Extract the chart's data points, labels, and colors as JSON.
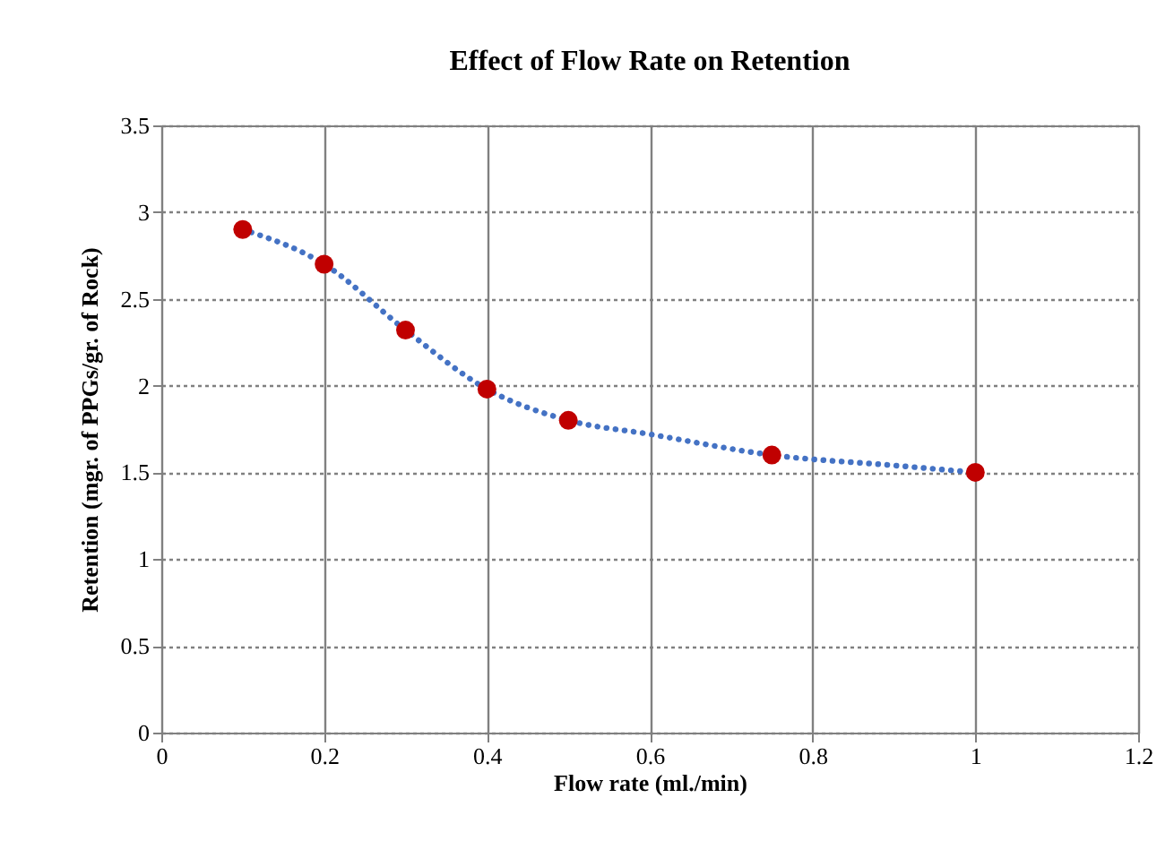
{
  "chart_data": {
    "type": "scatter",
    "title": "Effect of Flow Rate on Retention",
    "xlabel": "Flow rate (ml./min)",
    "ylabel": "Retention (mgr. of PPGs/gr. of Rock)",
    "x": [
      0.1,
      0.2,
      0.3,
      0.4,
      0.5,
      0.75,
      1.0
    ],
    "series": [
      {
        "type": "line",
        "color": "#4472c4",
        "line_style": "dotted",
        "marker": "none",
        "x": [
          0.1,
          0.2,
          0.3,
          0.4,
          0.5,
          0.6,
          0.75,
          0.9,
          1.0
        ],
        "values": [
          2.9,
          2.7,
          2.32,
          1.98,
          1.8,
          1.72,
          1.6,
          1.54,
          1.5
        ]
      },
      {
        "type": "scatter",
        "color": "#c00000",
        "marker": "circle",
        "values": [
          2.9,
          2.7,
          2.32,
          1.98,
          1.8,
          1.6,
          1.5
        ]
      }
    ],
    "xlim": [
      0,
      1.2
    ],
    "xticks": [
      0,
      0.2,
      0.4,
      0.6,
      0.8,
      1,
      1.2
    ],
    "ylim": [
      0,
      3.5
    ],
    "yticks": [
      0,
      0.5,
      1,
      1.5,
      2,
      2.5,
      3,
      3.5
    ],
    "grid": true
  }
}
